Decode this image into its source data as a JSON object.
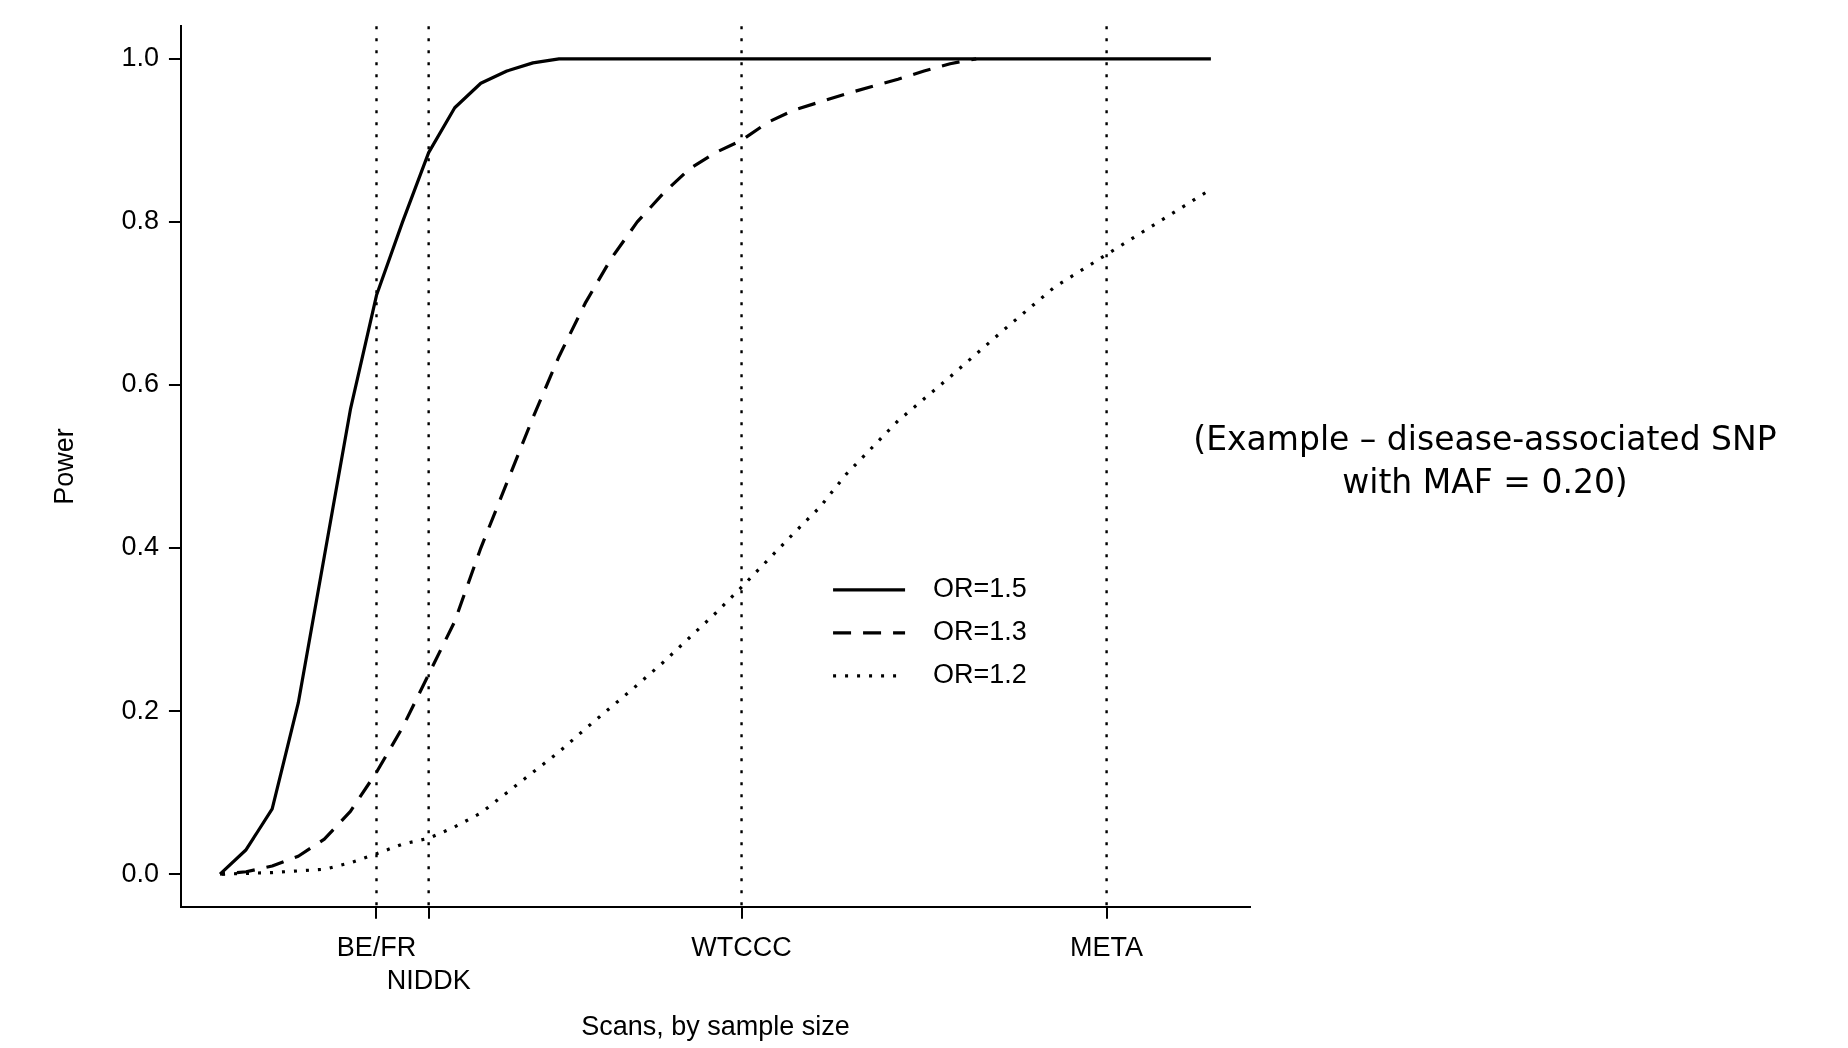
{
  "chart_data": {
    "type": "line",
    "xlabel": "Scans, by sample size",
    "ylabel": "Power",
    "categories": [
      null,
      null,
      null,
      null,
      null,
      null,
      "BE/FR",
      null,
      "NIDDK",
      null,
      null,
      null,
      null,
      null,
      null,
      null,
      null,
      null,
      null,
      null,
      "WTCCC",
      null,
      null,
      null,
      null,
      null,
      null,
      null,
      null,
      null,
      null,
      null,
      null,
      null,
      "META",
      null,
      null,
      null,
      null
    ],
    "ylim": [
      -0.04,
      1.04
    ],
    "yticks": [
      {
        "value": 0,
        "label": "0.0"
      },
      {
        "value": 0.2,
        "label": "0.2"
      },
      {
        "value": 0.4,
        "label": "0.4"
      },
      {
        "value": 0.6,
        "label": "0.6"
      },
      {
        "value": 0.8,
        "label": "0.8"
      },
      {
        "value": 1,
        "label": "1.0"
      }
    ],
    "ref_lines": [
      {
        "axis": "x",
        "value": "BE/FR",
        "line_style": "dotted",
        "color": "#000000"
      },
      {
        "axis": "x",
        "value": "NIDDK",
        "line_style": "dotted",
        "color": "#000000"
      },
      {
        "axis": "x",
        "value": "WTCCC",
        "line_style": "dotted",
        "color": "#000000"
      },
      {
        "axis": "x",
        "value": "META",
        "line_style": "dotted",
        "color": "#000000"
      }
    ],
    "grid": false,
    "legend": "bottom right",
    "marker": "none",
    "annotations": [
      "(Example – disease-associated SNP\nwith MAF = 0.20)"
    ],
    "series": [
      {
        "name": "OR=1.5",
        "color": "#000000",
        "line_style": "solid",
        "values": [
          0,
          0.03,
          0.08,
          0.21,
          0.39,
          0.57,
          0.71,
          0.8,
          0.885,
          0.94,
          0.97,
          0.985,
          0.995,
          1,
          1,
          1,
          1,
          1,
          1,
          1,
          1,
          1,
          1,
          1,
          1,
          1,
          1,
          1,
          1,
          1,
          1,
          1,
          1,
          1,
          1,
          1,
          1,
          1,
          1
        ]
      },
      {
        "name": "OR=1.3",
        "color": "#000000",
        "line_style": "dashed",
        "values": [
          0,
          0.003,
          0.01,
          0.022,
          0.043,
          0.077,
          0.125,
          0.18,
          0.245,
          0.31,
          0.4,
          0.48,
          0.56,
          0.635,
          0.7,
          0.755,
          0.8,
          0.835,
          0.865,
          0.885,
          0.9,
          0.922,
          0.937,
          0.947,
          0.957,
          0.966,
          0.975,
          0.985,
          0.994,
          1,
          null,
          null,
          null,
          null,
          null,
          null,
          null,
          null,
          null
        ]
      },
      {
        "name": "OR=1.2",
        "color": "#000000",
        "line_style": "dotted",
        "values": [
          0,
          0.001,
          0.002,
          0.004,
          0.006,
          0.014,
          0.025,
          0.037,
          0.044,
          0.058,
          0.075,
          0.1,
          0.125,
          0.15,
          0.178,
          0.205,
          0.232,
          0.26,
          0.29,
          0.32,
          0.352,
          0.385,
          0.418,
          0.45,
          0.49,
          0.523,
          0.556,
          0.583,
          0.61,
          0.638,
          0.666,
          0.693,
          0.72,
          0.74,
          0.76,
          0.78,
          0.8,
          0.82,
          0.84
        ]
      }
    ]
  }
}
